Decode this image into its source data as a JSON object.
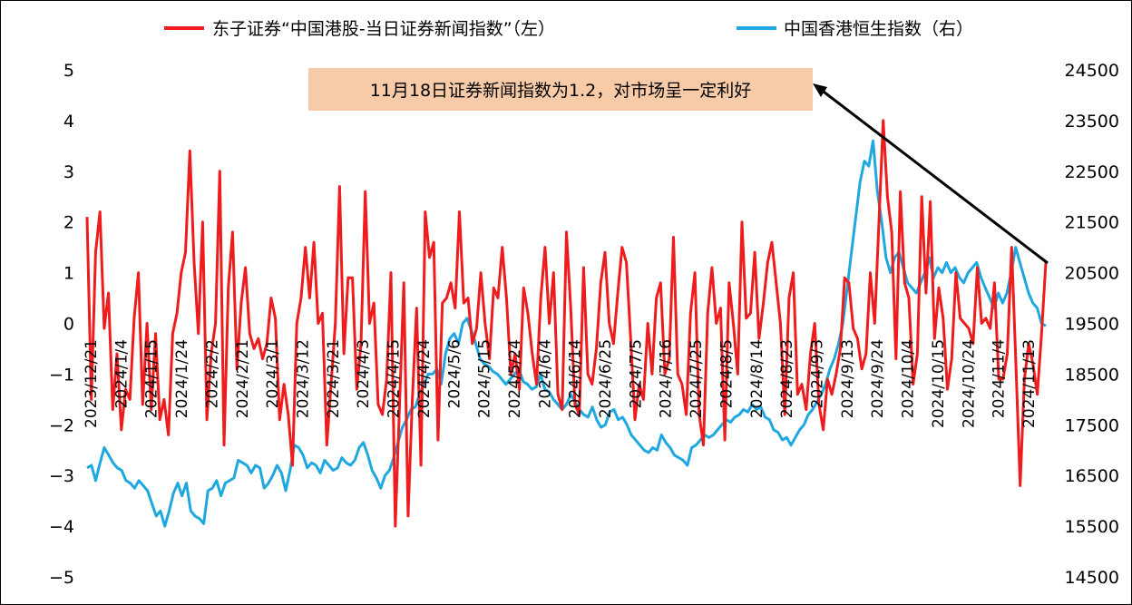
{
  "chart_data": {
    "type": "line",
    "title": "",
    "xlabel": "",
    "ylabel": "",
    "ylim_left": [
      -5,
      5
    ],
    "ylim_right": [
      14500,
      24500
    ],
    "yticks_left": [
      "5",
      "4",
      "3",
      "2",
      "1",
      "0",
      "−1",
      "−2",
      "−3",
      "−4",
      "−5"
    ],
    "yticks_right": [
      "24500",
      "23500",
      "22500",
      "21500",
      "20500",
      "19500",
      "18500",
      "17500",
      "16500",
      "15500",
      "14500"
    ],
    "x_ticks": [
      "2023/12/21",
      "2024/1/4",
      "2024/1/15",
      "2024/1/24",
      "2024/2/2",
      "2024/2/21",
      "2024/3/1",
      "2024/3/12",
      "2024/3/21",
      "2024/4/3",
      "2024/4/15",
      "2024/4/24",
      "2024/5/6",
      "2024/5/15",
      "2024/5/24",
      "2024/6/4",
      "2024/6/14",
      "2024/6/25",
      "2024/7/5",
      "2024/7/16",
      "2024/7/25",
      "2024/8/5",
      "2024/8/14",
      "2024/8/23",
      "2024/9/3",
      "2024/9/13",
      "2024/9/24",
      "2024/10/4",
      "2024/10/15",
      "2024/10/24",
      "2024/11/4",
      "2024/11/13"
    ],
    "legend_position": "top",
    "grid": false,
    "series": [
      {
        "name": "东子证券“中国港股-当日证券新闻指数”（左）",
        "axis": "left",
        "color": "#ee1c1c",
        "values": [
          2.1,
          -1.5,
          1.4,
          2.2,
          -0.1,
          0.6,
          -1.7,
          -0.6,
          -2.1,
          -1.3,
          -1.5,
          0.1,
          1.0,
          -1.6,
          0.0,
          -1.7,
          -0.2,
          -1.9,
          -1.5,
          -2.2,
          -0.2,
          0.2,
          1.0,
          1.4,
          3.4,
          1.2,
          -0.2,
          2.0,
          -1.9,
          -0.6,
          0.0,
          3.0,
          -2.4,
          0.7,
          1.8,
          -0.9,
          0.4,
          1.1,
          -0.2,
          -0.5,
          -0.3,
          -0.7,
          -0.4,
          0.5,
          0.1,
          -1.9,
          -1.2,
          -1.8,
          -2.8,
          0.0,
          0.5,
          1.5,
          0.5,
          1.6,
          0.0,
          0.2,
          -2.4,
          -1.2,
          0.0,
          2.7,
          -0.6,
          0.9,
          0.9,
          -1.3,
          -0.4,
          2.6,
          0.0,
          0.4,
          -1.6,
          -1.8,
          -1.1,
          1.0,
          -4.0,
          -1.6,
          0.8,
          -3.8,
          -1.5,
          0.3,
          -2.8,
          2.2,
          1.3,
          1.6,
          -2.3,
          0.4,
          0.5,
          0.8,
          0.3,
          2.2,
          0.4,
          0.5,
          -0.4,
          -0.1,
          1.0,
          0.0,
          -0.7,
          0.7,
          0.5,
          1.5,
          0.5,
          -1.0,
          -0.6,
          -1.3,
          0.7,
          0.2,
          -0.6,
          -1.2,
          0.5,
          1.5,
          0.0,
          1.0,
          -1.4,
          -1.7,
          1.8,
          0.3,
          -1.6,
          -1.8,
          1.1,
          -1.0,
          -1.2,
          -0.5,
          0.8,
          1.4,
          0.0,
          -0.4,
          0.6,
          1.5,
          1.2,
          -0.3,
          -1.9,
          -1.2,
          -1.5,
          0.0,
          -1.0,
          0.5,
          0.8,
          -1.0,
          -0.7,
          1.7,
          -1.0,
          -1.2,
          -1.8,
          0.2,
          1.0,
          -1.8,
          -2.4,
          0.2,
          1.1,
          0.0,
          0.3,
          -2.3,
          0.8,
          0.0,
          -1.0,
          2.0,
          0.1,
          0.2,
          1.4,
          -0.3,
          0.4,
          1.2,
          1.6,
          0.8,
          0.0,
          -1.8,
          0.5,
          1.0,
          -1.4,
          -1.2,
          -1.7,
          -0.6,
          0.0,
          -1.6,
          -2.1,
          -1.1,
          -1.4,
          -1.0,
          -0.5,
          0.9,
          0.8,
          -0.1,
          -0.3,
          -0.9,
          -0.6,
          1.0,
          0.0,
          2.0,
          4.0,
          2.5,
          1.8,
          -0.7,
          2.6,
          0.8,
          0.5,
          -1.2,
          -0.6,
          2.5,
          0.6,
          2.4,
          -0.3,
          0.7,
          0.1,
          -1.3,
          -0.7,
          1.0,
          0.1,
          0.0,
          -0.1,
          -0.4,
          1.1,
          0.0,
          0.1,
          -0.1,
          0.8,
          -1.1,
          -1.1,
          -0.6,
          1.5,
          -0.8,
          -3.2,
          -1.1,
          -0.4,
          -0.8,
          -1.4,
          -0.2,
          1.2
        ]
      },
      {
        "name": "中国香港恒生指数（右）",
        "axis": "right",
        "color": "#1fa8e0",
        "values": [
          16650,
          16700,
          16400,
          16750,
          17050,
          16900,
          16750,
          16650,
          16600,
          16400,
          16350,
          16250,
          16400,
          16300,
          16200,
          15950,
          15700,
          15800,
          15500,
          15800,
          16150,
          16350,
          16100,
          16350,
          15800,
          15700,
          15650,
          15550,
          16200,
          16250,
          16400,
          16100,
          16350,
          16400,
          16450,
          16800,
          16750,
          16700,
          16550,
          16700,
          16650,
          16250,
          16350,
          16500,
          16700,
          16550,
          16200,
          16600,
          17100,
          17050,
          16900,
          16650,
          16750,
          16700,
          16550,
          16800,
          16700,
          16600,
          16650,
          16850,
          16750,
          16700,
          16800,
          17050,
          17150,
          16900,
          16600,
          16450,
          16250,
          16500,
          16600,
          16850,
          17150,
          17450,
          17600,
          17800,
          17850,
          18100,
          18300,
          18500,
          18500,
          18600,
          18300,
          18900,
          19200,
          19300,
          19100,
          19500,
          19600,
          19350,
          19100,
          18800,
          18700,
          18650,
          18550,
          18500,
          18400,
          18300,
          18400,
          18500,
          18600,
          18350,
          18300,
          18200,
          18250,
          18500,
          18200,
          18150,
          18000,
          17900,
          17800,
          17900,
          18100,
          17950,
          17800,
          17700,
          17650,
          17850,
          17600,
          17450,
          17500,
          17750,
          17800,
          17600,
          17650,
          17500,
          17300,
          17200,
          17100,
          17000,
          16950,
          17050,
          17000,
          17300,
          17150,
          17050,
          16900,
          16850,
          16800,
          16700,
          17050,
          17100,
          17200,
          17300,
          17250,
          17300,
          17400,
          17500,
          17600,
          17550,
          17650,
          17700,
          17800,
          17750,
          17900,
          17800,
          17850,
          17650,
          17600,
          17400,
          17350,
          17200,
          17250,
          17100,
          17250,
          17400,
          17500,
          17700,
          17800,
          17950,
          18100,
          18300,
          18600,
          18800,
          19100,
          19500,
          20200,
          20900,
          21600,
          22300,
          22700,
          22600,
          23100,
          22100,
          21500,
          20800,
          20500,
          20800,
          20900,
          20600,
          20300,
          20200,
          20100,
          20300,
          20500,
          20800,
          20400,
          20600,
          20500,
          20700,
          20500,
          20600,
          20400,
          20300,
          20500,
          20600,
          20700,
          20400,
          20200,
          20000,
          19800,
          20100,
          19900,
          20100,
          20500,
          21000,
          20700,
          20400,
          20100,
          19900,
          19800,
          19500,
          19450
        ]
      }
    ],
    "annotation": "11月18日证券新闻指数为1.2，对市场呈一定利好"
  }
}
